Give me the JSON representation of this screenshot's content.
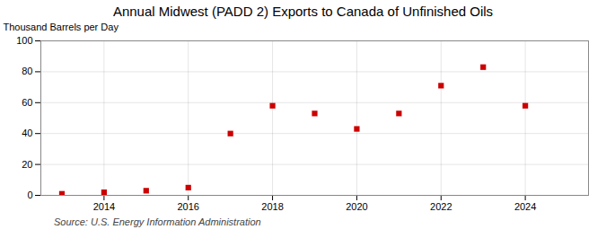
{
  "chart_data": {
    "type": "scatter",
    "title": "Annual Midwest (PADD 2) Exports to Canada of Unfinished Oils",
    "ylabel": "Thousand Barrels per Day",
    "source": "Source: U.S. Energy Information Administration",
    "x": [
      2013,
      2014,
      2015,
      2016,
      2017,
      2018,
      2019,
      2020,
      2021,
      2022,
      2023,
      2024
    ],
    "values": [
      1,
      2,
      3,
      5,
      40,
      58,
      53,
      43,
      53,
      71,
      83,
      58
    ],
    "color": "#cc0000",
    "marker": "square",
    "xlim": [
      2012.5,
      2025.5
    ],
    "xticks": [
      2014,
      2016,
      2018,
      2020,
      2022,
      2024
    ],
    "ylim": [
      0,
      100
    ],
    "yticks": [
      0,
      20,
      40,
      60,
      80,
      100
    ],
    "grid": true
  }
}
